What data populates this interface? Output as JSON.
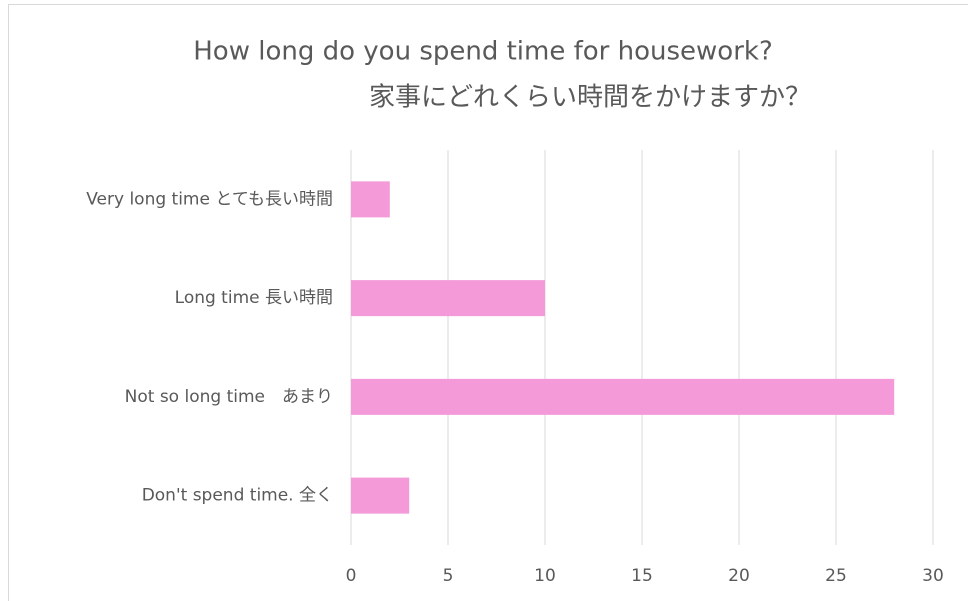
{
  "chart_data": {
    "type": "barh",
    "title": [
      "How long do you spend time for housework?",
      "家事にどれくらい時間をかけますか？"
    ],
    "categories": [
      "Very long time とても長い時間",
      "Long time 長い時間",
      "Not so long time　あまり",
      "Don't spend time. 全く"
    ],
    "values": [
      2,
      10,
      28,
      3
    ],
    "color": "#f49ad8",
    "xlim": [
      0,
      30
    ],
    "xticks": [
      0,
      5,
      10,
      15,
      20,
      25,
      30
    ],
    "grid": true
  }
}
